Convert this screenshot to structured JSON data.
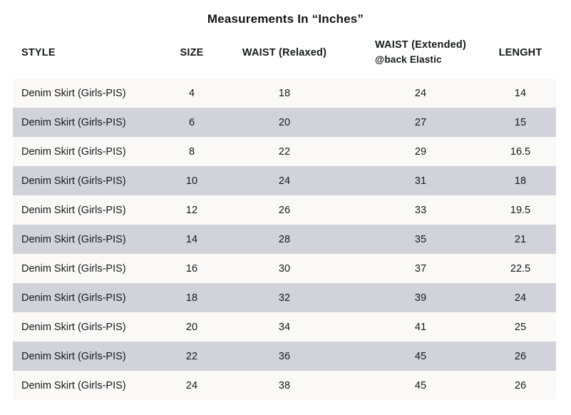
{
  "title": "Measurements In “Inches”",
  "chart_data": {
    "type": "table",
    "title": "Measurements In “Inches”",
    "columns": [
      "STYLE",
      "SIZE",
      "WAIST (Relaxed)",
      "WAIST (Extended) @back Elastic",
      "LENGHT"
    ],
    "header_labels": {
      "style": "STYLE",
      "size": "SIZE",
      "waist_relaxed": "WAIST (Relaxed)",
      "waist_extended_line1": "WAIST (Extended)",
      "waist_extended_line2": "@back Elastic",
      "length": "LENGHT"
    },
    "rows": [
      [
        "Denim Skirt (Girls-PIS)",
        "4",
        "18",
        "24",
        "14"
      ],
      [
        "Denim Skirt (Girls-PIS)",
        "6",
        "20",
        "27",
        "15"
      ],
      [
        "Denim Skirt (Girls-PIS)",
        "8",
        "22",
        "29",
        "16.5"
      ],
      [
        "Denim Skirt (Girls-PIS)",
        "10",
        "24",
        "31",
        "18"
      ],
      [
        "Denim Skirt (Girls-PIS)",
        "12",
        "26",
        "33",
        "19.5"
      ],
      [
        "Denim Skirt (Girls-PIS)",
        "14",
        "28",
        "35",
        "21"
      ],
      [
        "Denim Skirt (Girls-PIS)",
        "16",
        "30",
        "37",
        "22.5"
      ],
      [
        "Denim Skirt (Girls-PIS)",
        "18",
        "32",
        "39",
        "24"
      ],
      [
        "Denim Skirt (Girls-PIS)",
        "20",
        "34",
        "41",
        "25"
      ],
      [
        "Denim Skirt (Girls-PIS)",
        "22",
        "36",
        "45",
        "26"
      ],
      [
        "Denim Skirt (Girls-PIS)",
        "24",
        "38",
        "45",
        "26"
      ]
    ],
    "layout": {
      "stripe_even_rows": true,
      "legend": "none",
      "grid": "none"
    },
    "colors": {
      "row_light": "#faf9f7",
      "row_shaded": "#d2d2da",
      "text": "#17181c",
      "background": "#ffffff"
    }
  }
}
